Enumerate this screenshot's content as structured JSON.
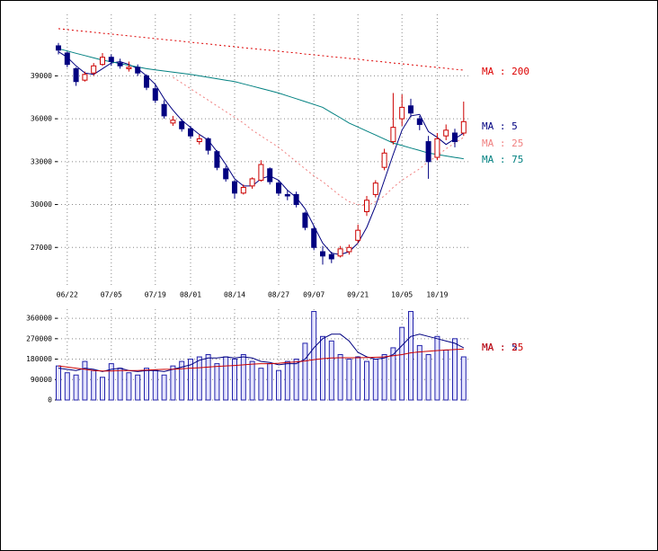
{
  "chart_data": [
    {
      "type": "candlestick",
      "categories": [
        null,
        "06/22",
        null,
        null,
        null,
        null,
        "07/05",
        null,
        null,
        null,
        null,
        "07/19",
        null,
        null,
        null,
        "08/01",
        null,
        null,
        null,
        null,
        "08/14",
        null,
        null,
        null,
        null,
        "08/27",
        null,
        null,
        null,
        "09/07",
        null,
        null,
        null,
        null,
        "09/21",
        null,
        null,
        null,
        null,
        "10/05",
        null,
        null,
        null,
        "10/19",
        null,
        null,
        null
      ],
      "open": [
        41100,
        40600,
        39500,
        38700,
        39200,
        39800,
        40300,
        39900,
        39500,
        39600,
        39000,
        38100,
        37000,
        35700,
        35800,
        35300,
        34400,
        34600,
        33700,
        32500,
        31600,
        30800,
        31300,
        31700,
        32500,
        31500,
        30700,
        30700,
        29400,
        28300,
        26700,
        26500,
        26400,
        26700,
        27500,
        29500,
        30700,
        32600,
        34400,
        36000,
        36900,
        36000,
        34400,
        33300,
        34800,
        35000,
        35000
      ],
      "high": [
        41300,
        40700,
        39600,
        39300,
        39900,
        40600,
        40500,
        40200,
        40000,
        39800,
        39100,
        38400,
        37300,
        36200,
        36000,
        35500,
        34900,
        34700,
        33800,
        32700,
        31700,
        31400,
        31900,
        33100,
        32600,
        31700,
        31000,
        30900,
        29500,
        28500,
        27100,
        26700,
        27100,
        27200,
        28600,
        30600,
        31700,
        33900,
        37800,
        37700,
        37400,
        36200,
        34800,
        35000,
        35600,
        35300,
        37200
      ],
      "low": [
        40500,
        39600,
        38300,
        38600,
        39000,
        39700,
        39700,
        39500,
        39300,
        39000,
        38000,
        37100,
        36000,
        35500,
        35100,
        34600,
        34200,
        33500,
        32400,
        31600,
        30400,
        30700,
        31100,
        31600,
        31400,
        30600,
        30300,
        29800,
        28200,
        26800,
        25800,
        25900,
        26300,
        26500,
        27300,
        29200,
        30500,
        32400,
        34200,
        35500,
        36100,
        35200,
        31800,
        33100,
        34500,
        34000,
        34800
      ],
      "close": [
        40800,
        39800,
        38600,
        39100,
        39700,
        40300,
        40000,
        39700,
        39600,
        39200,
        38200,
        37300,
        36200,
        35900,
        35300,
        34800,
        34600,
        33800,
        32600,
        31800,
        30800,
        31200,
        31800,
        32800,
        31600,
        30800,
        30600,
        30000,
        28400,
        27000,
        26400,
        26200,
        26900,
        27000,
        28200,
        30300,
        31500,
        33600,
        35400,
        36800,
        36400,
        35600,
        33000,
        34600,
        35200,
        34400,
        35800
      ],
      "up_color": "#cc0000",
      "down_color": "#000080",
      "series": [
        {
          "name": "MA : 200",
          "color": "#dd0000",
          "style": "dotted",
          "values": [
            42300,
            42240,
            42170,
            42110,
            42050,
            41980,
            41920,
            41860,
            41800,
            41730,
            41670,
            41600,
            41540,
            41480,
            41420,
            41350,
            41290,
            41230,
            41160,
            41100,
            41040,
            40970,
            40910,
            40850,
            40790,
            40720,
            40660,
            40600,
            40530,
            40470,
            40410,
            40340,
            40280,
            40220,
            40160,
            40090,
            40030,
            39970,
            39900,
            39840,
            39780,
            39710,
            39650,
            39590,
            39530,
            39460,
            39400
          ]
        },
        {
          "name": "MA : 5",
          "color": "#000080",
          "style": "solid",
          "values": [
            40700,
            40300,
            39700,
            39200,
            39100,
            39500,
            39900,
            40000,
            39800,
            39500,
            39000,
            38400,
            37400,
            36600,
            35900,
            35400,
            34900,
            34500,
            33700,
            32800,
            31800,
            31300,
            31300,
            31800,
            32000,
            31700,
            31000,
            30500,
            29700,
            28500,
            27300,
            26600,
            26500,
            26700,
            27300,
            28400,
            29900,
            31700,
            33500,
            35200,
            36200,
            36300,
            35100,
            34700,
            34200,
            34600,
            35000
          ]
        },
        {
          "name": "MA : 25",
          "color": "#f08080",
          "style": "dotted",
          "values": [
            null,
            null,
            null,
            null,
            null,
            null,
            null,
            null,
            null,
            null,
            null,
            null,
            null,
            38900,
            38500,
            38100,
            37700,
            37300,
            36900,
            36500,
            36100,
            35700,
            35200,
            34800,
            34400,
            34000,
            33500,
            33000,
            32500,
            32000,
            31600,
            31100,
            30600,
            30200,
            30000,
            29900,
            30200,
            30600,
            31200,
            31700,
            32100,
            32500,
            33000,
            33400,
            33900,
            34300,
            34700
          ]
        },
        {
          "name": "MA : 75",
          "color": "#008080",
          "style": "solid",
          "values": [
            40900,
            40740,
            40580,
            40420,
            40260,
            40100,
            39980,
            39860,
            39740,
            39620,
            39500,
            39420,
            39340,
            39260,
            39180,
            39100,
            39000,
            38900,
            38800,
            38700,
            38600,
            38440,
            38280,
            38120,
            37960,
            37800,
            37600,
            37400,
            37200,
            37000,
            36800,
            36430,
            36070,
            35700,
            35420,
            35140,
            34860,
            34580,
            34300,
            34130,
            33950,
            33780,
            33600,
            33500,
            33400,
            33300,
            33200
          ]
        }
      ],
      "ylim": [
        24250,
        43300
      ],
      "yticks": [
        27000,
        30000,
        33000,
        36000,
        39000
      ],
      "grid": true
    },
    {
      "type": "bar",
      "values": [
        150000,
        120000,
        110000,
        170000,
        130000,
        100000,
        160000,
        140000,
        120000,
        110000,
        140000,
        130000,
        110000,
        150000,
        170000,
        180000,
        190000,
        200000,
        160000,
        190000,
        180000,
        200000,
        170000,
        140000,
        160000,
        130000,
        170000,
        180000,
        250000,
        390000,
        280000,
        260000,
        200000,
        180000,
        190000,
        170000,
        180000,
        200000,
        230000,
        320000,
        390000,
        240000,
        200000,
        280000,
        220000,
        270000,
        190000
      ],
      "color": "#2222aa",
      "series": [
        {
          "name": "MA : 5",
          "color": "#000080",
          "values": [
            140000,
            135000,
            130000,
            140000,
            135000,
            125000,
            135000,
            140000,
            130000,
            125000,
            130000,
            130000,
            125000,
            135000,
            145000,
            155000,
            175000,
            185000,
            185000,
            190000,
            185000,
            190000,
            185000,
            170000,
            165000,
            155000,
            160000,
            160000,
            180000,
            230000,
            270000,
            290000,
            290000,
            260000,
            210000,
            190000,
            180000,
            185000,
            200000,
            240000,
            280000,
            290000,
            280000,
            270000,
            260000,
            250000,
            230000
          ]
        },
        {
          "name": "MA : 25",
          "color": "#cc0000",
          "values": [
            150000,
            145000,
            140000,
            135000,
            130000,
            128000,
            128000,
            130000,
            130000,
            130000,
            132000,
            134000,
            135000,
            136000,
            138000,
            140000,
            142000,
            145000,
            148000,
            150000,
            152000,
            155000,
            158000,
            160000,
            160000,
            162000,
            165000,
            168000,
            172000,
            178000,
            182000,
            185000,
            186000,
            186000,
            186000,
            187000,
            188000,
            190000,
            195000,
            200000,
            208000,
            212000,
            215000,
            218000,
            220000,
            222000,
            225000
          ]
        }
      ],
      "ylim": [
        0,
        400000
      ],
      "yticks": [
        0,
        90000,
        180000,
        270000,
        360000
      ],
      "grid": true
    }
  ]
}
